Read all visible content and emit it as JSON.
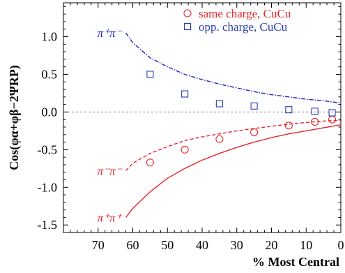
{
  "chart_data": {
    "type": "scatter",
    "ylabel": "Cos(φα+φβ−2ΨRP)",
    "xlabel": "% Most Central",
    "xlim": [
      80,
      0
    ],
    "ylim": [
      -1.6,
      1.45
    ],
    "x_ticks": [
      "70",
      "60",
      "50",
      "40",
      "30",
      "20",
      "10",
      "0"
    ],
    "y_ticks": [
      "-1.5",
      "-1.0",
      "-0.5",
      "0.0",
      "0.5",
      "1.0"
    ],
    "series": [
      {
        "name": "same charge, CuCu",
        "marker": "circle",
        "color": "#e8262b",
        "x": [
          55,
          45,
          35,
          25,
          15,
          7.5,
          2.5
        ],
        "y": [
          -0.67,
          -0.5,
          -0.36,
          -0.27,
          -0.18,
          -0.13,
          -0.1
        ]
      },
      {
        "name": "opp.  charge, CuCu",
        "marker": "square",
        "color": "#2b3bb0",
        "x": [
          55,
          45,
          35,
          25,
          15,
          7.5,
          2.5
        ],
        "y": [
          0.5,
          0.24,
          0.11,
          0.08,
          0.03,
          0.01,
          -0.01
        ]
      }
    ],
    "curves": [
      {
        "label": "π⁺π⁻",
        "color": "#1c1cc8",
        "style": "dashdot",
        "x": [
          62,
          60,
          55,
          50,
          45,
          40,
          35,
          30,
          25,
          20,
          15,
          10,
          5,
          0
        ],
        "y": [
          1.05,
          0.92,
          0.72,
          0.6,
          0.5,
          0.43,
          0.37,
          0.32,
          0.27,
          0.23,
          0.2,
          0.17,
          0.15,
          0.12
        ]
      },
      {
        "label": "π⁻π⁻",
        "color": "#e8262b",
        "style": "dashed",
        "x": [
          62,
          60,
          55,
          50,
          45,
          40,
          35,
          30,
          25,
          20,
          15,
          10,
          5,
          0
        ],
        "y": [
          -0.78,
          -0.68,
          -0.55,
          -0.46,
          -0.38,
          -0.33,
          -0.29,
          -0.25,
          -0.22,
          -0.19,
          -0.16,
          -0.14,
          -0.12,
          -0.11
        ]
      },
      {
        "label": "π⁺π⁺",
        "color": "#e8262b",
        "style": "solid",
        "x": [
          62,
          60,
          55,
          50,
          45,
          40,
          35,
          30,
          25,
          20,
          15,
          10,
          5,
          0
        ],
        "y": [
          -1.4,
          -1.28,
          -1.06,
          -0.88,
          -0.75,
          -0.64,
          -0.55,
          -0.47,
          -0.4,
          -0.34,
          -0.29,
          -0.25,
          -0.21,
          -0.17
        ]
      }
    ],
    "zero_line": true,
    "legend_position": "top-right"
  }
}
